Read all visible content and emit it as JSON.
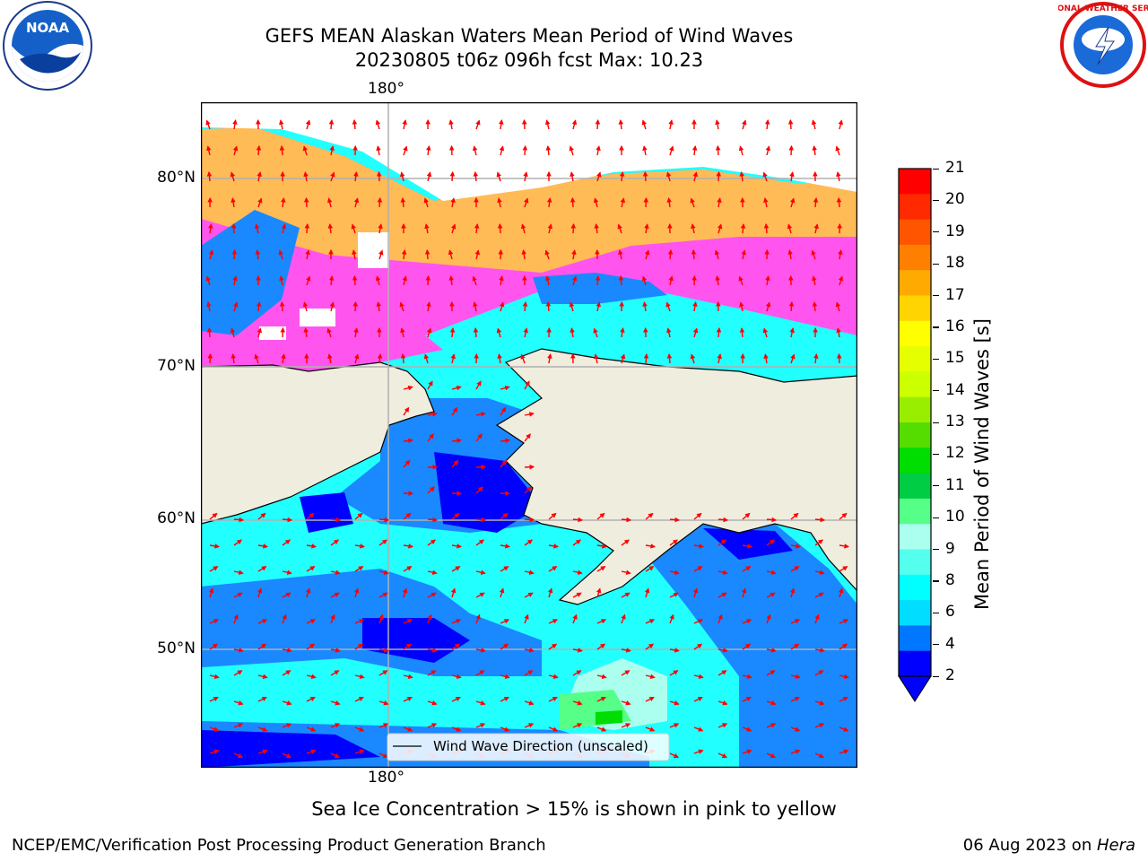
{
  "title": {
    "line1": "GEFS MEAN Alaskan Waters Mean Period of Wind Waves",
    "line2": "20230805 t06z 096h fcst   Max: 10.23"
  },
  "logos": {
    "left": "noaa-logo",
    "left_text": "NOAA",
    "right": "nws-logo",
    "right_text": "NATIONAL WEATHER SERVICE"
  },
  "map": {
    "lon_label_top": "180°",
    "lon_label_bottom": "180°",
    "lat_labels": [
      "80°N",
      "70°N",
      "60°N",
      "50°N"
    ],
    "legend_label": "Wind Wave Direction (unscaled)",
    "colors": {
      "land": "#efedde",
      "grid": "#b0b0b0",
      "arrow": "#ff0000",
      "ice_pink": "#ff44ee",
      "ice_orange": "#ffbb44"
    }
  },
  "colorbar": {
    "label": "Mean Period of Wind Waves [s]",
    "ticks": [
      "21",
      "20",
      "19",
      "18",
      "17",
      "16",
      "15",
      "14",
      "13",
      "12",
      "11",
      "10",
      "9",
      "8",
      "6",
      "4",
      "2"
    ],
    "colors_top_to_bottom": [
      "#ff0000",
      "#ff2a00",
      "#ff5500",
      "#ff8000",
      "#ffaa00",
      "#ffd400",
      "#ffff00",
      "#e6ff00",
      "#ccff00",
      "#99ee00",
      "#55dd00",
      "#00dd00",
      "#00cc44",
      "#55ff88",
      "#aaffee",
      "#55ffee",
      "#00ffff",
      "#00ddff",
      "#0077ff",
      "#0000ff"
    ],
    "extend_color": "#0000ff"
  },
  "caption": "Sea Ice Concentration > 15% is shown in pink to yellow",
  "footer": {
    "left": "NCEP/EMC/Verification Post Processing Product Generation Branch",
    "right_date": "06 Aug 2023 on ",
    "right_host": "Hera"
  }
}
